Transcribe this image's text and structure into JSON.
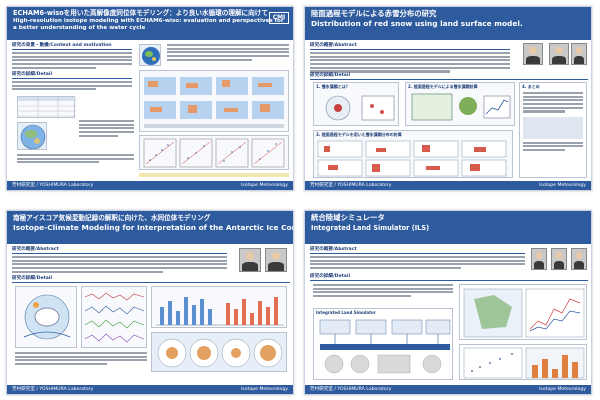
{
  "posters": [
    {
      "title_ja": "ECHAM6-wisoを用いた高解像度同位体モデリング：より良い水循環の理解に向けて",
      "title_en": "High-resolution isotope modeling with ECHAM6-wiso: evaluation and perspectives for a better understanding of the water cycle",
      "logo": "CMI",
      "sections": [
        "研究の背景・動機/Context and motivation",
        "研究の詳細/Detail"
      ],
      "footer_left": "芳村研究室 / YOSHIMURA Laboratory",
      "footer_right": "Isotope Meteorology"
    },
    {
      "title_ja": "陸面過程モデルによる赤雪分布の研究",
      "title_en": "Distribution of red snow using land surface model.",
      "sections": [
        "研究の概要/Abstract",
        "研究の詳細/Detail"
      ],
      "figures": [
        "1. 雪氷藻類とは？",
        "2. 陸面過程モデルによる雪氷藻類計算",
        "3. 陸面過程モデルを用いた雪氷藻類分布の計算",
        "4. まとめ"
      ],
      "footer_left": "芳村研究室 / YOSHIMURA Laboratory",
      "footer_right": "Isotope Meteorology"
    },
    {
      "title_ja": "南極アイスコア気候変動記録の解釈に向けた、水同位体モデリング",
      "title_en": "Isotope-Climate Modeling for Interpretation of the Antarctic Ice Cores",
      "sections": [
        "研究の概要/Abstract",
        "研究の詳細/Detail"
      ],
      "footer_left": "芳村研究室 / YOSHIMURA Laboratory",
      "footer_right": "Isotope Meteorology"
    },
    {
      "title_ja": "統合陸域シミュレータ",
      "title_en": "Integrated Land Simulator (ILS)",
      "sections": [
        "研究の概要/Abstract",
        "研究の詳細/Detail"
      ],
      "figures": [
        "Integrated Land Simulator"
      ],
      "footer_left": "芳村研究室 / YOSHIMURA Laboratory",
      "footer_right": "Isotope Meteorology"
    }
  ],
  "colors": {
    "header": "#2e5a9e",
    "accent": "#1f3f7a",
    "frame": "#c9d3e3"
  }
}
